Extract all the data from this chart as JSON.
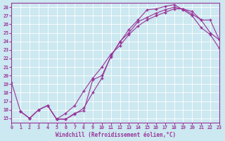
{
  "xlabel": "Windchill (Refroidissement éolien,°C)",
  "bg_color": "#cce8f0",
  "grid_color": "#ffffff",
  "line_color": "#993399",
  "marker": "+",
  "xlim": [
    0,
    23
  ],
  "ylim": [
    14.5,
    28.5
  ],
  "xticks": [
    0,
    1,
    2,
    3,
    4,
    5,
    6,
    7,
    8,
    9,
    10,
    11,
    12,
    13,
    14,
    15,
    16,
    17,
    18,
    19,
    20,
    21,
    22,
    23
  ],
  "yticks": [
    15,
    16,
    17,
    18,
    19,
    20,
    21,
    22,
    23,
    24,
    25,
    26,
    27,
    28
  ],
  "curve_upper_x": [
    0,
    1,
    2,
    3,
    4,
    5,
    6,
    7,
    8,
    9,
    10,
    11,
    12,
    13,
    14,
    15,
    16,
    17,
    18,
    19,
    20,
    21,
    22,
    23
  ],
  "curve_upper_y": [
    19.2,
    15.8,
    15.0,
    16.0,
    16.5,
    14.9,
    14.9,
    15.6,
    15.9,
    19.5,
    20.0,
    22.2,
    24.0,
    25.0,
    26.3,
    26.8,
    27.3,
    27.7,
    28.0,
    27.8,
    27.2,
    26.5,
    26.5,
    24.2
  ],
  "curve_lower_x": [
    1,
    2,
    3,
    4,
    5,
    6,
    7,
    8,
    9,
    10,
    11,
    12,
    13,
    14,
    15,
    16,
    17,
    18,
    19,
    20,
    21,
    22,
    23
  ],
  "curve_lower_y": [
    15.8,
    15.0,
    16.0,
    16.5,
    14.9,
    14.9,
    15.5,
    16.2,
    18.0,
    19.7,
    22.3,
    23.9,
    25.4,
    26.5,
    27.7,
    27.8,
    28.1,
    28.3,
    27.7,
    27.0,
    25.6,
    24.8,
    23.2
  ],
  "curve_diag_x": [
    1,
    2,
    3,
    4,
    5,
    6,
    7,
    8,
    9,
    10,
    11,
    12,
    13,
    14,
    15,
    16,
    17,
    18,
    19,
    20,
    21,
    22,
    23
  ],
  "curve_diag_y": [
    15.8,
    15.0,
    16.0,
    16.5,
    14.9,
    15.6,
    16.5,
    18.2,
    19.7,
    21.0,
    22.5,
    23.5,
    24.8,
    25.8,
    26.5,
    27.0,
    27.4,
    27.8,
    27.8,
    27.5,
    26.5,
    25.0,
    24.2
  ]
}
